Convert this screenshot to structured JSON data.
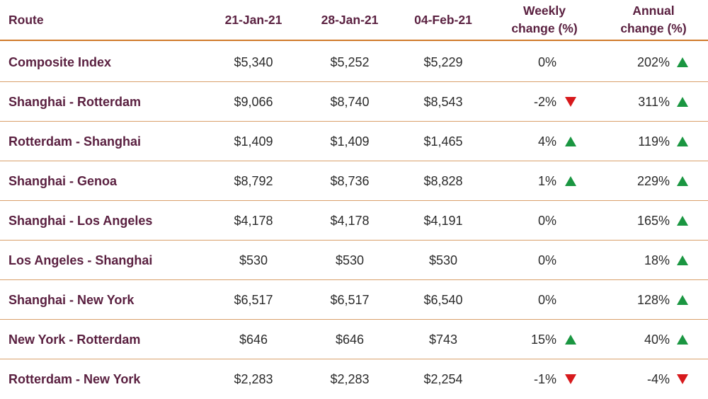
{
  "colors": {
    "header_text": "#5a2040",
    "route_text": "#5a2040",
    "rule": "#d07a2b",
    "up": "#1a9641",
    "down": "#d7191c"
  },
  "header": {
    "route": "Route",
    "d1": "21-Jan-21",
    "d2": "28-Jan-21",
    "d3": "04-Feb-21",
    "weekly": [
      "Weekly",
      "change (%)"
    ],
    "annual": [
      "Annual",
      "change (%)"
    ]
  },
  "chart_data": {
    "type": "table",
    "columns": [
      "Route",
      "21-Jan-21",
      "28-Jan-21",
      "04-Feb-21",
      "Weekly change (%)",
      "Annual change (%)"
    ],
    "rows": [
      {
        "route": "Composite Index",
        "d1": "$5,340",
        "d2": "$5,252",
        "d3": "$5,229",
        "weekly": "0%",
        "weekly_dir": "none",
        "annual": "202%",
        "annual_dir": "up"
      },
      {
        "route": "Shanghai - Rotterdam",
        "d1": "$9,066",
        "d2": "$8,740",
        "d3": "$8,543",
        "weekly": "-2%",
        "weekly_dir": "down",
        "annual": "311%",
        "annual_dir": "up"
      },
      {
        "route": "Rotterdam - Shanghai",
        "d1": "$1,409",
        "d2": "$1,409",
        "d3": "$1,465",
        "weekly": "4%",
        "weekly_dir": "up",
        "annual": "119%",
        "annual_dir": "up"
      },
      {
        "route": "Shanghai - Genoa",
        "d1": "$8,792",
        "d2": "$8,736",
        "d3": "$8,828",
        "weekly": "1%",
        "weekly_dir": "up",
        "annual": "229%",
        "annual_dir": "up"
      },
      {
        "route": "Shanghai - Los Angeles",
        "d1": "$4,178",
        "d2": "$4,178",
        "d3": "$4,191",
        "weekly": "0%",
        "weekly_dir": "none",
        "annual": "165%",
        "annual_dir": "up"
      },
      {
        "route": "Los Angeles - Shanghai",
        "d1": "$530",
        "d2": "$530",
        "d3": "$530",
        "weekly": "0%",
        "weekly_dir": "none",
        "annual": "18%",
        "annual_dir": "up"
      },
      {
        "route": "Shanghai - New York",
        "d1": "$6,517",
        "d2": "$6,517",
        "d3": "$6,540",
        "weekly": "0%",
        "weekly_dir": "none",
        "annual": "128%",
        "annual_dir": "up"
      },
      {
        "route": "New York - Rotterdam",
        "d1": "$646",
        "d2": "$646",
        "d3": "$743",
        "weekly": "15%",
        "weekly_dir": "up",
        "annual": "40%",
        "annual_dir": "up"
      },
      {
        "route": "Rotterdam - New York",
        "d1": "$2,283",
        "d2": "$2,283",
        "d3": "$2,254",
        "weekly": "-1%",
        "weekly_dir": "down",
        "annual": "-4%",
        "annual_dir": "down"
      }
    ]
  }
}
